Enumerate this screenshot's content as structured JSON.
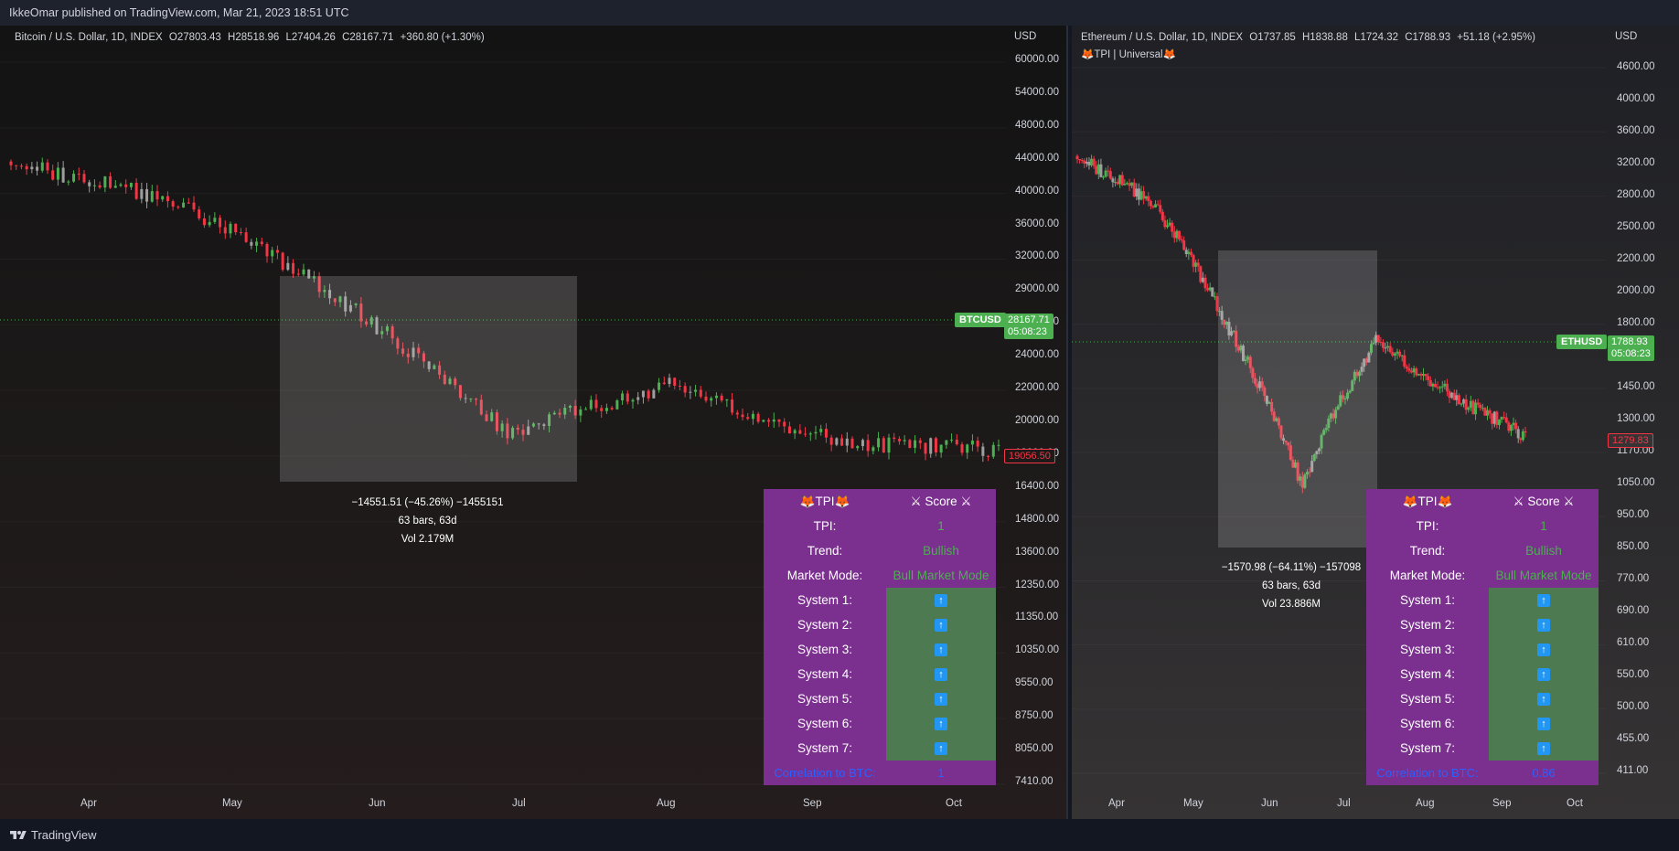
{
  "header": {
    "publish_text": "IkkeOmar published on TradingView.com, Mar 21, 2023 18:51 UTC"
  },
  "footer": {
    "brand": "TradingView"
  },
  "btc": {
    "legend_title": "Bitcoin / U.S. Dollar, 1D, INDEX",
    "open": "O27803.43",
    "high": "H28518.96",
    "low": "L27404.26",
    "close": "C28167.71",
    "change": "+360.80 (+1.30%)",
    "currency": "USD",
    "price_axis": [
      "60000.00",
      "54000.00",
      "48000.00",
      "44000.00",
      "40000.00",
      "36000.00",
      "32000.00",
      "29000.00",
      "26000.00",
      "24000.00",
      "22000.00",
      "20000.00",
      "18000.00",
      "16400.00",
      "14800.00",
      "13600.00",
      "12350.00",
      "11350.00",
      "10350.00",
      "9550.00",
      "8750.00",
      "8050.00",
      "7410.00"
    ],
    "time_axis": [
      "Apr",
      "May",
      "Jun",
      "Jul",
      "Aug",
      "Sep",
      "Oct"
    ],
    "symbol_tag": "BTCUSD",
    "last_price": "28167.71",
    "countdown": "05:08:23",
    "cursor_price": "19056.50",
    "measure": {
      "line1": "−14551.51 (−45.26%) −1455151",
      "line2": "63 bars, 63d",
      "line3": "Vol 2.179M"
    },
    "tpi_table": {
      "h1": "🦊TPI🦊",
      "h2": "⚔ Score ⚔",
      "rows": [
        {
          "label": "TPI:",
          "value": "1"
        },
        {
          "label": "Trend:",
          "value": "Bullish"
        },
        {
          "label": "Market Mode:",
          "value": "Bull Market Mode"
        }
      ],
      "systems": [
        "System 1:",
        "System 2:",
        "System 3:",
        "System 4:",
        "System 5:",
        "System 6:",
        "System 7:"
      ],
      "corr_label": "Correlation to BTC:",
      "corr_value": "1"
    }
  },
  "eth": {
    "legend_title": "Ethereum / U.S. Dollar, 1D, INDEX",
    "open": "O1737.85",
    "high": "H1838.88",
    "low": "L1724.32",
    "close": "C1788.93",
    "change": "+51.18 (+2.95%)",
    "indicator": "🦊TPI | Universal🦊",
    "currency": "USD",
    "price_axis": [
      "4600.00",
      "4000.00",
      "3600.00",
      "3200.00",
      "2800.00",
      "2500.00",
      "2200.00",
      "2000.00",
      "1800.00",
      "1600.00",
      "1450.00",
      "1300.00",
      "1170.00",
      "1050.00",
      "950.00",
      "850.00",
      "770.00",
      "690.00",
      "610.00",
      "550.00",
      "500.00",
      "455.00",
      "411.00"
    ],
    "time_axis": [
      "Apr",
      "May",
      "Jun",
      "Jul",
      "Aug",
      "Sep",
      "Oct"
    ],
    "symbol_tag": "ETHUSD",
    "last_price": "1788.93",
    "countdown": "05:08:23",
    "cursor_price": "1279.83",
    "measure": {
      "line1": "−1570.98 (−64.11%) −157098",
      "line2": "63 bars, 63d",
      "line3": "Vol 23.886M"
    },
    "tpi_table": {
      "h1": "🦊TPI🦊",
      "h2": "⚔ Score ⚔",
      "rows": [
        {
          "label": "TPI:",
          "value": "1"
        },
        {
          "label": "Trend:",
          "value": "Bullish"
        },
        {
          "label": "Market Mode:",
          "value": "Bull Market Mode"
        }
      ],
      "systems": [
        "System 1:",
        "System 2:",
        "System 3:",
        "System 4:",
        "System 5:",
        "System 6:",
        "System 7:"
      ],
      "corr_label": "Correlation to BTC:",
      "corr_value": "0.86"
    }
  },
  "colors": {
    "up": "#4caf50",
    "down": "#f23645",
    "neutral": "#9e9e9e",
    "table_bg": "#7b2f8f",
    "system_bg": "#4e7a52",
    "arrow": "#2196f3"
  },
  "chart_data": [
    {
      "type": "candlestick",
      "symbol": "BTCUSD",
      "x": [
        "Apr",
        "May",
        "Jun",
        "Jul",
        "Aug",
        "Sep",
        "Oct"
      ],
      "series": [
        {
          "values": [
            45000,
            40000,
            30000,
            20500,
            23500,
            20000,
            19500
          ]
        }
      ],
      "ylim": [
        7410,
        60000
      ],
      "last": 28167.71
    },
    {
      "type": "candlestick",
      "symbol": "ETHUSD",
      "x": [
        "Apr",
        "May",
        "Jun",
        "Jul",
        "Aug",
        "Sep",
        "Oct"
      ],
      "series": [
        {
          "values": [
            3400,
            2900,
            1900,
            1100,
            1800,
            1500,
            1300
          ]
        }
      ],
      "ylim": [
        411,
        4600
      ],
      "last": 1788.93
    }
  ]
}
